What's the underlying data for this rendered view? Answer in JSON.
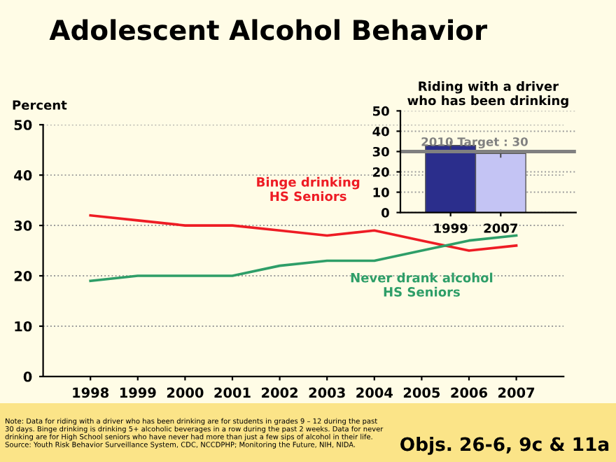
{
  "chart_data": [
    {
      "type": "line",
      "title": "Adolescent Alcohol Behavior",
      "ylabel": "Percent",
      "categories": [
        "1998",
        "1999",
        "2000",
        "2001",
        "2002",
        "2003",
        "2004",
        "2005",
        "2006",
        "2007"
      ],
      "series": [
        {
          "name": "Binge drinking\nHS Seniors",
          "color": "#ee1c24",
          "values": [
            32,
            31,
            30,
            30,
            29,
            28,
            29,
            27,
            25,
            26
          ]
        },
        {
          "name": "Never drank alcohol\nHS Seniors",
          "color": "#2e9e68",
          "values": [
            19,
            20,
            20,
            20,
            22,
            23,
            23,
            25,
            27,
            28
          ]
        }
      ],
      "ylim": [
        0,
        50
      ],
      "yticks": [
        0,
        10,
        20,
        30,
        40,
        50
      ],
      "grid": "y",
      "legend": false,
      "annotations": [
        "Note: Data for riding with a driver who has been drinking are for students in grades 9 – 12 during the past\n30 days. Binge drinking is drinking 5+ alcoholic beverages in a row during the past 2 weeks. Data for never\ndrinking are for High School seniors who have never had more than just a few sips of alcohol in their life.\nSource: Youth Risk Behavior Surveillance System, CDC, NCCDPHP; Monitoring the Future, NIH, NIDA.",
        "Objs. 26-6, 9c & 11a"
      ]
    },
    {
      "type": "bar",
      "title": "Riding with a driver\nwho has been drinking",
      "categories": [
        "1999",
        "2007"
      ],
      "values": [
        33,
        29
      ],
      "errors": [
        2,
        2
      ],
      "colors": [
        "#2b2e8c",
        "#c4c4f4"
      ],
      "ylim": [
        0,
        50
      ],
      "yticks": [
        0,
        10,
        20,
        30,
        40,
        50
      ],
      "grid": "y",
      "ref_lines": [
        {
          "axis": "y",
          "value": 30,
          "label": "2010 Target : 30",
          "color": "#808080"
        }
      ]
    }
  ]
}
